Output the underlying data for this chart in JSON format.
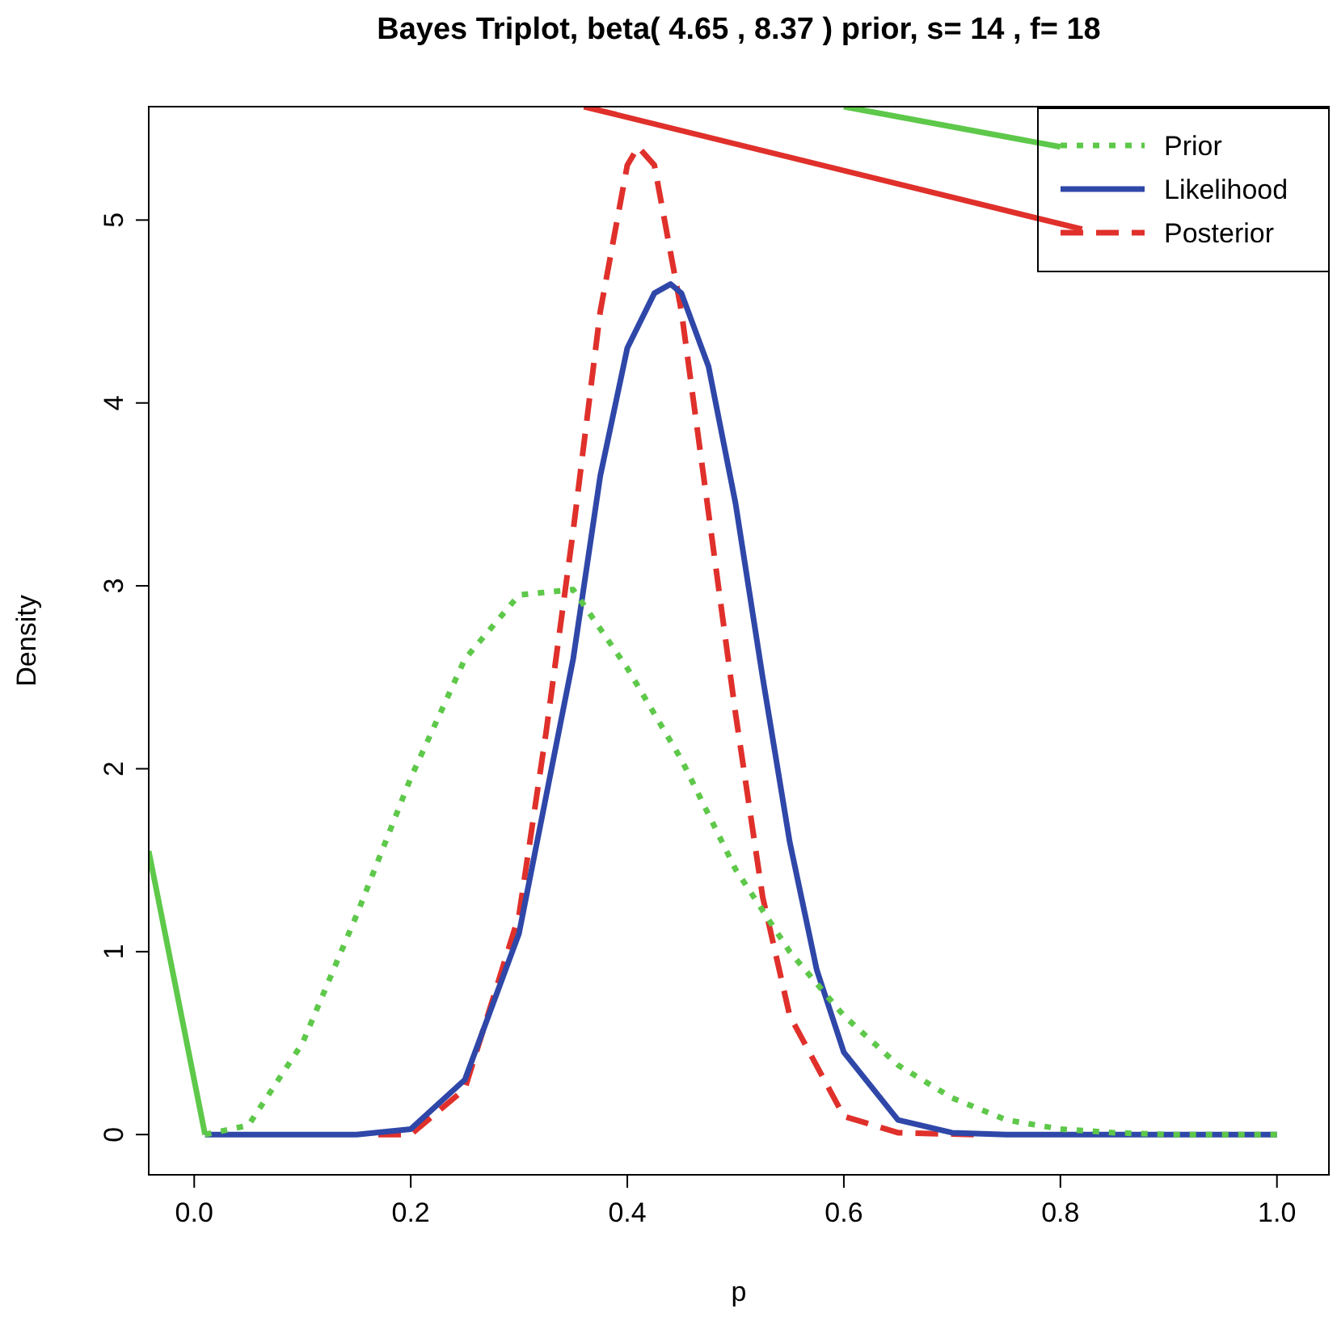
{
  "chart_data": {
    "type": "line",
    "title": "Bayes Triplot, beta( 4.65 , 8.37 ) prior, s= 14 , f= 18",
    "xlabel": "p",
    "ylabel": "Density",
    "xlim": [
      -0.042,
      1.048
    ],
    "ylim": [
      -0.22,
      5.62
    ],
    "xticks": [
      {
        "value": 0,
        "label": "0.0"
      },
      0.2,
      0.4,
      0.6,
      0.8,
      {
        "value": 1,
        "label": "1.0"
      }
    ],
    "yticks": [
      0,
      1,
      2,
      3,
      4,
      5
    ],
    "grid": false,
    "legend": "top right",
    "series": [
      {
        "name": "Prior",
        "color": "#5ec84a",
        "line_style": "dotted",
        "x": [
          0.01,
          0.05,
          0.1,
          0.15,
          0.2,
          0.25,
          0.3,
          0.35,
          0.4,
          0.45,
          0.5,
          0.55,
          0.6,
          0.65,
          0.7,
          0.75,
          0.8,
          0.85,
          0.9,
          0.95,
          1
        ],
        "values": [
          0,
          0.05,
          0.5,
          1.2,
          1.95,
          2.6,
          2.95,
          2.98,
          2.55,
          2.05,
          1.45,
          1.0,
          0.65,
          0.38,
          0.2,
          0.08,
          0.03,
          0.01,
          0,
          0,
          0
        ]
      },
      {
        "name": "Likelihood",
        "color": "#2f47a8",
        "line_style": "solid",
        "x": [
          0.01,
          0.1,
          0.15,
          0.2,
          0.25,
          0.3,
          0.35,
          0.375,
          0.4,
          0.425,
          0.44,
          0.45,
          0.475,
          0.5,
          0.525,
          0.55,
          0.575,
          0.6,
          0.65,
          0.7,
          0.75,
          0.8,
          0.9,
          1
        ],
        "values": [
          0,
          0,
          0,
          0.03,
          0.3,
          1.1,
          2.6,
          3.6,
          4.3,
          4.6,
          4.65,
          4.6,
          4.2,
          3.45,
          2.5,
          1.6,
          0.9,
          0.45,
          0.08,
          0.01,
          0,
          0,
          0,
          0
        ]
      },
      {
        "name": "Posterior",
        "color": "#e0302b",
        "line_style": "dashed",
        "x": [
          0.17,
          0.2,
          0.25,
          0.3,
          0.325,
          0.35,
          0.375,
          0.4,
          0.41,
          0.425,
          0.45,
          0.475,
          0.5,
          0.525,
          0.55,
          0.6,
          0.65,
          0.72
        ],
        "values": [
          0,
          0,
          0.25,
          1.2,
          2.2,
          3.3,
          4.5,
          5.3,
          5.4,
          5.3,
          4.5,
          3.4,
          2.3,
          1.3,
          0.65,
          0.1,
          0.01,
          0
        ]
      },
      {
        "color": "#5ec84a",
        "line_style": "solid",
        "x": [
          -0.042,
          0.01
        ],
        "values": [
          1.55,
          0
        ]
      },
      {
        "color": "#5ec84a",
        "line_style": "solid",
        "x": [
          0.6,
          0.8
        ],
        "values": [
          5.62,
          5.4
        ]
      },
      {
        "color": "#e0302b",
        "line_style": "solid",
        "x": [
          0.36,
          0.82
        ],
        "values": [
          5.62,
          4.95
        ]
      }
    ]
  }
}
